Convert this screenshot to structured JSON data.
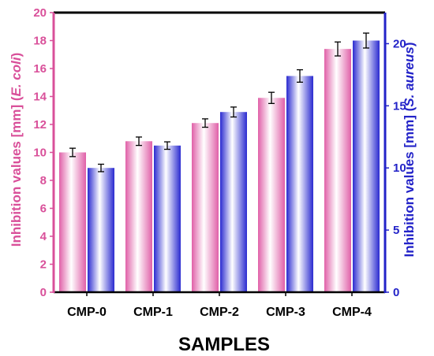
{
  "chart_data": {
    "type": "bar",
    "categories": [
      "CMP-0",
      "CMP-1",
      "CMP-2",
      "CMP-3",
      "CMP-4"
    ],
    "xlabel": "SAMPLES",
    "ylabel_left_parts": [
      "Inhibition values [mm] (",
      "E. coli",
      ")"
    ],
    "ylabel_right_parts": [
      "Inhibition values [mm] (",
      "S. aureus",
      ")"
    ],
    "ylim_left": [
      0,
      20
    ],
    "ylim_right": [
      0,
      22.5
    ],
    "yticks_left": [
      0,
      2,
      4,
      6,
      8,
      10,
      12,
      14,
      16,
      18,
      20
    ],
    "yticks_right": [
      0,
      5,
      10,
      15,
      20
    ],
    "series": [
      {
        "axis": "left",
        "values": [
          10.0,
          10.8,
          12.1,
          13.9,
          17.4
        ],
        "errors": [
          0.3,
          0.3,
          0.3,
          0.4,
          0.5
        ],
        "color": "#e879b8"
      },
      {
        "axis": "right",
        "values": [
          10.0,
          11.8,
          14.5,
          17.4,
          20.25
        ],
        "errors": [
          0.3,
          0.3,
          0.4,
          0.5,
          0.6
        ],
        "color": "#3a3ad8"
      }
    ],
    "colors": {
      "left_axis": "#d9509a",
      "right_axis": "#2323c8",
      "frame": "#000000"
    },
    "grid": false
  }
}
